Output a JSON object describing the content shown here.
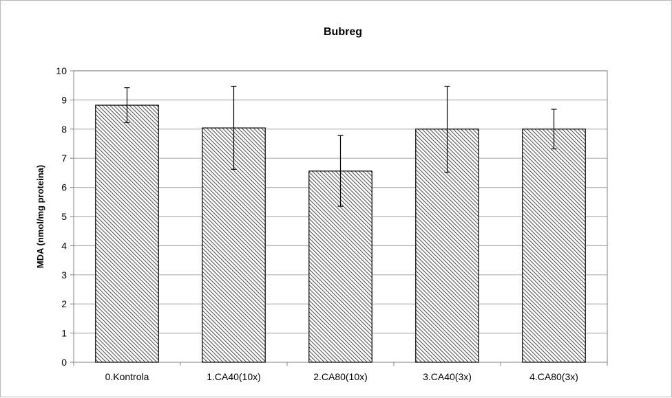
{
  "chart_data": {
    "type": "bar",
    "title": "Bubreg",
    "xlabel": "",
    "ylabel": "MDA (nmol/mg proteina)",
    "ylim": [
      0,
      10
    ],
    "yticks": [
      0,
      1,
      2,
      3,
      4,
      5,
      6,
      7,
      8,
      9,
      10
    ],
    "grid": true,
    "legend": "none",
    "categories": [
      "0.Kontrola",
      "1.CA40(10x)",
      "2.CA80(10x)",
      "3.CA40(3x)",
      "4.CA80(3x)"
    ],
    "values": [
      8.82,
      8.04,
      6.56,
      8.0,
      8.0
    ],
    "error_low": [
      8.22,
      6.62,
      5.35,
      6.52,
      7.32
    ],
    "error_high": [
      9.42,
      9.47,
      7.78,
      9.47,
      8.68
    ],
    "colors": {
      "bar_fill": "#ffffff",
      "hatch": "#555555",
      "grid": "#b0b0b0",
      "axis": "#808080"
    }
  }
}
